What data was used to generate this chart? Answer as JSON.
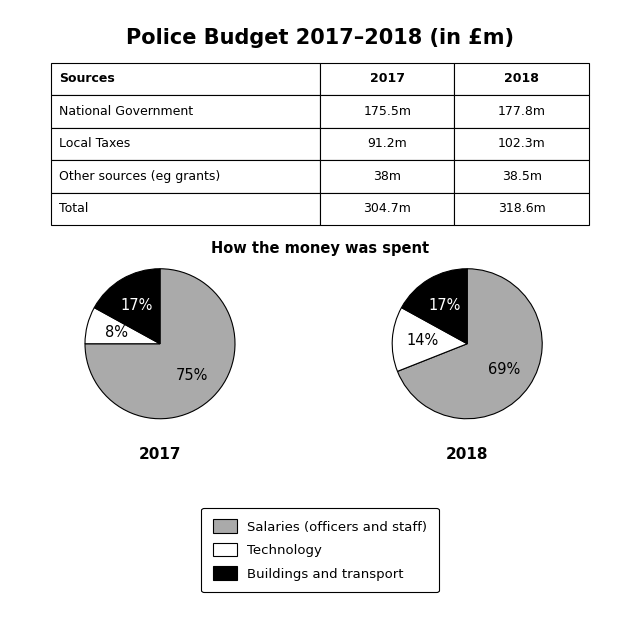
{
  "title": "Police Budget 2017–2018 (in £m)",
  "table": {
    "headers": [
      "Sources",
      "2017",
      "2018"
    ],
    "rows": [
      [
        "National Government",
        "175.5m",
        "177.8m"
      ],
      [
        "Local Taxes",
        "91.2m",
        "102.3m"
      ],
      [
        "Other sources (eg grants)",
        "38m",
        "38.5m"
      ],
      [
        "Total",
        "304.7m",
        "318.6m"
      ]
    ]
  },
  "pie_title": "How the money was spent",
  "pie_2017": {
    "label": "2017",
    "values": [
      75,
      8,
      17
    ],
    "labels": [
      "75%",
      "8%",
      "17%"
    ],
    "colors": [
      "#aaaaaa",
      "#ffffff",
      "#000000"
    ],
    "startangle": 90
  },
  "pie_2018": {
    "label": "2018",
    "values": [
      69,
      14,
      17
    ],
    "labels": [
      "69%",
      "14%",
      "17%"
    ],
    "colors": [
      "#aaaaaa",
      "#ffffff",
      "#000000"
    ],
    "startangle": 90
  },
  "legend_labels": [
    "Salaries (officers and staff)",
    "Technology",
    "Buildings and transport"
  ],
  "legend_colors": [
    "#aaaaaa",
    "#ffffff",
    "#000000"
  ],
  "background_color": "#ffffff"
}
